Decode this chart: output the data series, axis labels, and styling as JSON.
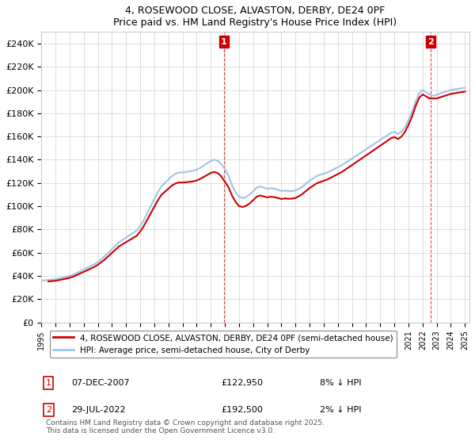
{
  "title_line1": "4, ROSEWOOD CLOSE, ALVASTON, DERBY, DE24 0PF",
  "title_line2": "Price paid vs. HM Land Registry's House Price Index (HPI)",
  "ylabel": "",
  "ylim": [
    0,
    250000
  ],
  "yticks": [
    0,
    20000,
    40000,
    60000,
    80000,
    100000,
    120000,
    140000,
    160000,
    180000,
    200000,
    220000,
    240000
  ],
  "ytick_labels": [
    "£0",
    "£20K",
    "£40K",
    "£60K",
    "£80K",
    "£100K",
    "£120K",
    "£140K",
    "£160K",
    "£180K",
    "£200K",
    "£220K",
    "£240K"
  ],
  "hpi_color": "#a0c4e8",
  "price_color": "#cc0000",
  "vline_color": "#cc0000",
  "vline_style": "--",
  "transaction1_date": "2007-12-07",
  "transaction1_price": 122950,
  "transaction1_label": "1",
  "transaction2_date": "2022-07-29",
  "transaction2_price": 192500,
  "transaction2_label": "2",
  "legend_property": "4, ROSEWOOD CLOSE, ALVASTON, DERBY, DE24 0PF (semi-detached house)",
  "legend_hpi": "HPI: Average price, semi-detached house, City of Derby",
  "note1": "1    07-DEC-2007         £122,950         8% ↓ HPI",
  "note2": "2    29-JUL-2022         £192,500         2% ↓ HPI",
  "footer": "Contains HM Land Registry data © Crown copyright and database right 2025.\nThis data is licensed under the Open Government Licence v3.0.",
  "background_color": "#ffffff",
  "plot_bg_color": "#ffffff",
  "grid_color": "#dddddd",
  "hpi_data": {
    "dates": [
      1995.0,
      1995.25,
      1995.5,
      1995.75,
      1996.0,
      1996.25,
      1996.5,
      1996.75,
      1997.0,
      1997.25,
      1997.5,
      1997.75,
      1998.0,
      1998.25,
      1998.5,
      1998.75,
      1999.0,
      1999.25,
      1999.5,
      1999.75,
      2000.0,
      2000.25,
      2000.5,
      2000.75,
      2001.0,
      2001.25,
      2001.5,
      2001.75,
      2002.0,
      2002.25,
      2002.5,
      2002.75,
      2003.0,
      2003.25,
      2003.5,
      2003.75,
      2004.0,
      2004.25,
      2004.5,
      2004.75,
      2005.0,
      2005.25,
      2005.5,
      2005.75,
      2006.0,
      2006.25,
      2006.5,
      2006.75,
      2007.0,
      2007.25,
      2007.5,
      2007.75,
      2008.0,
      2008.25,
      2008.5,
      2008.75,
      2009.0,
      2009.25,
      2009.5,
      2009.75,
      2010.0,
      2010.25,
      2010.5,
      2010.75,
      2011.0,
      2011.25,
      2011.5,
      2011.75,
      2012.0,
      2012.25,
      2012.5,
      2012.75,
      2013.0,
      2013.25,
      2013.5,
      2013.75,
      2014.0,
      2014.25,
      2014.5,
      2014.75,
      2015.0,
      2015.25,
      2015.5,
      2015.75,
      2016.0,
      2016.25,
      2016.5,
      2016.75,
      2017.0,
      2017.25,
      2017.5,
      2017.75,
      2018.0,
      2018.25,
      2018.5,
      2018.75,
      2019.0,
      2019.25,
      2019.5,
      2019.75,
      2020.0,
      2020.25,
      2020.5,
      2020.75,
      2021.0,
      2021.25,
      2021.5,
      2021.75,
      2022.0,
      2022.25,
      2022.5,
      2022.75,
      2023.0,
      2023.25,
      2023.5,
      2023.75,
      2024.0,
      2024.25,
      2024.5,
      2024.75,
      2025.0
    ],
    "values": [
      36000,
      36200,
      36500,
      36800,
      37200,
      37800,
      38500,
      39200,
      40000,
      41000,
      42500,
      44000,
      45500,
      47000,
      48500,
      50000,
      52000,
      54500,
      57000,
      60000,
      63000,
      66000,
      69000,
      71000,
      73000,
      75000,
      77000,
      79000,
      83000,
      88000,
      94000,
      100000,
      106000,
      112000,
      117000,
      120000,
      123000,
      126000,
      128000,
      129000,
      129000,
      129500,
      130000,
      130500,
      131500,
      133000,
      135000,
      137000,
      139000,
      140000,
      139000,
      136000,
      132000,
      126000,
      118000,
      112000,
      108000,
      107000,
      108000,
      110000,
      113000,
      116000,
      117000,
      116000,
      115000,
      115500,
      115000,
      114000,
      113000,
      113500,
      113000,
      113000,
      113500,
      115000,
      117000,
      119500,
      122000,
      124000,
      126000,
      127000,
      128000,
      129000,
      130500,
      132000,
      133500,
      135000,
      137000,
      139000,
      141000,
      143000,
      145000,
      147000,
      149000,
      151000,
      153000,
      155000,
      157000,
      159000,
      161000,
      163000,
      164000,
      162000,
      164000,
      168000,
      174000,
      181000,
      190000,
      197000,
      200000,
      198000,
      196000,
      195000,
      196000,
      197000,
      198000,
      199000,
      200000,
      200500,
      201000,
      201500,
      202000
    ]
  },
  "price_data": {
    "dates": [
      1995.3,
      2007.92,
      2022.57
    ],
    "values": [
      35000,
      122950,
      192500
    ]
  }
}
